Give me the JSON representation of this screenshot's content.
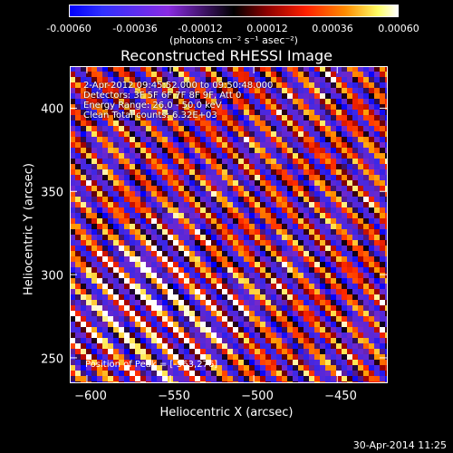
{
  "colorbar": {
    "ticks": [
      "-0.00060",
      "-0.00036",
      "-0.00012",
      "0.00012",
      "0.00036",
      "0.00060"
    ],
    "unit": "(photons cm⁻² s⁻¹ asec⁻²)"
  },
  "chart_data": {
    "type": "heatmap",
    "title": "Reconstructed RHESSI Image",
    "xlabel": "Heliocentric X (arcsec)",
    "ylabel": "Heliocentric Y (arcsec)",
    "xlim": [
      -610,
      -420
    ],
    "ylim": [
      235,
      425
    ],
    "xticks": [
      -600,
      -550,
      -500,
      -450
    ],
    "yticks": [
      250,
      300,
      350,
      400
    ],
    "xtick_labels": [
      "−600",
      "−550",
      "−500",
      "−450"
    ],
    "ytick_labels": [
      "250",
      "300",
      "350",
      "400"
    ],
    "value_range": [
      -0.0006,
      0.0006
    ],
    "colormap": "blue-black-red-yellow-white",
    "pattern": "diagonal fringe stripes running from upper-left to lower-right",
    "peak_position": [
      -563,
      276
    ],
    "annotations": [
      "2-Apr-2012 09:45:52.000 to 09:50:48.000",
      "Detectors: 3F 5F 6F 7F 8F 9F, Att 0",
      "Energy Range: 26.0 - 50.0 keV",
      "Clean    Total counts: 6.32E+03"
    ],
    "peak_label": "Position of Peak = [-563,276]"
  },
  "footer": {
    "timestamp": "30-Apr-2014 11:25"
  }
}
